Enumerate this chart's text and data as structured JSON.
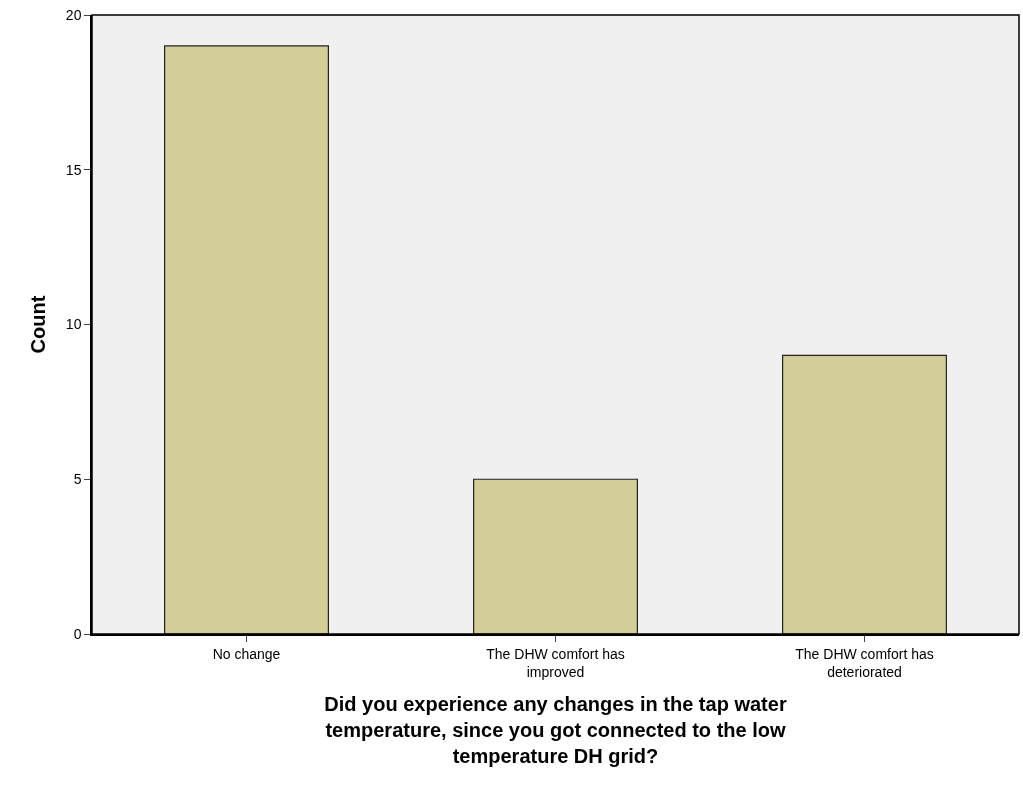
{
  "chart_data": {
    "type": "bar",
    "xlabel": "Did you experience any changes in the tap water temperature, since you got connected to the low temperature DH grid?",
    "ylabel": "Count",
    "categories": [
      "No change",
      "The DHW comfort has improved",
      "The DHW comfort has deteriorated"
    ],
    "values": [
      19,
      5,
      9
    ],
    "color": "#d3ce97",
    "ylim": [
      0,
      20
    ],
    "yticks": [
      0,
      5,
      10,
      15,
      20
    ],
    "grid": false,
    "legend": false
  }
}
